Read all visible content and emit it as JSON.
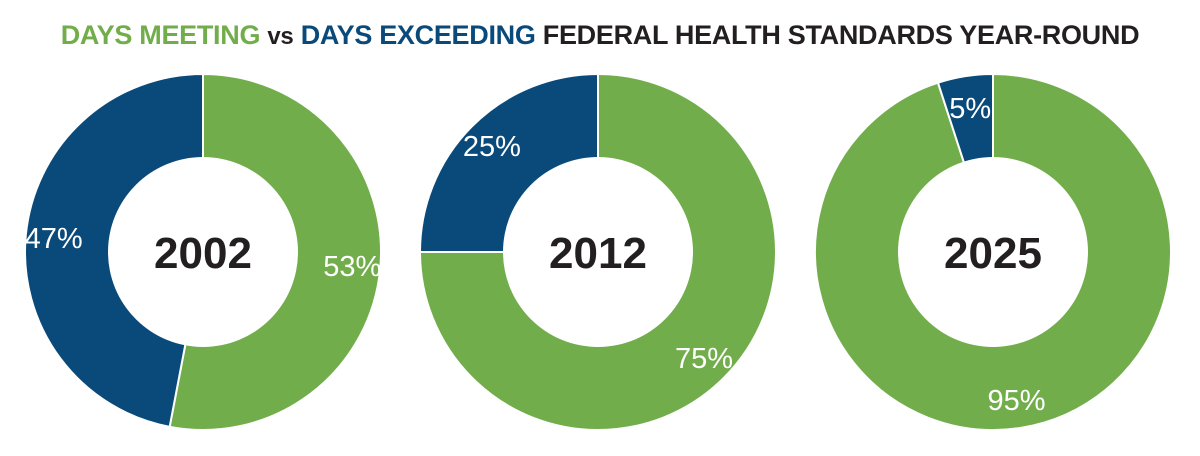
{
  "title": {
    "meeting": "DAYS MEETING",
    "vs": "vs",
    "exceeding": "DAYS EXCEEDING",
    "rest": "FEDERAL HEALTH STANDARDS YEAR-ROUND"
  },
  "colors": {
    "meeting": "#72ad4b",
    "exceeding": "#0a4a7a",
    "text": "#231f20"
  },
  "chart_data": [
    {
      "type": "pie",
      "title": "2002",
      "series": [
        {
          "name": "Days Meeting",
          "value": 53,
          "label": "53%"
        },
        {
          "name": "Days Exceeding",
          "value": 47,
          "label": "47%"
        }
      ]
    },
    {
      "type": "pie",
      "title": "2012",
      "series": [
        {
          "name": "Days Meeting",
          "value": 75,
          "label": "75%"
        },
        {
          "name": "Days Exceeding",
          "value": 25,
          "label": "25%"
        }
      ]
    },
    {
      "type": "pie",
      "title": "2025",
      "series": [
        {
          "name": "Days Meeting",
          "value": 95,
          "label": "95%"
        },
        {
          "name": "Days Exceeding",
          "value": 5,
          "label": "5%"
        }
      ]
    }
  ]
}
